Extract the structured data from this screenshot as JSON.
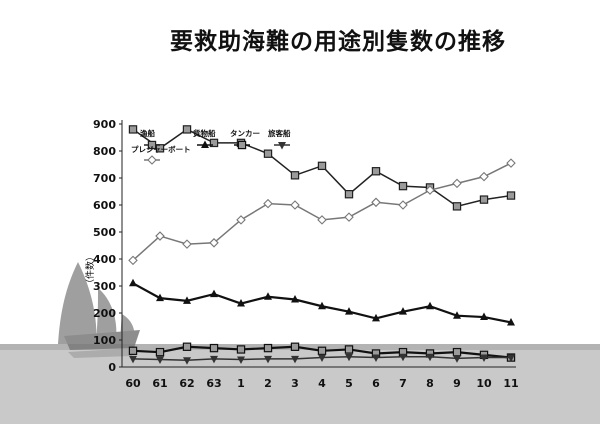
{
  "page": {
    "title": "要救助海難の用途別隻数の推移"
  },
  "chart_data": {
    "type": "line",
    "ylabel": "（件数）",
    "ylim": [
      0,
      900
    ],
    "yticks": [
      0,
      100,
      200,
      300,
      400,
      500,
      600,
      700,
      800,
      900
    ],
    "categories": [
      "60",
      "61",
      "62",
      "63",
      "1",
      "2",
      "3",
      "4",
      "5",
      "6",
      "7",
      "8",
      "9",
      "10",
      "11"
    ],
    "legend_placement": "top-left inside plot",
    "series": [
      {
        "name": "漁船",
        "marker": "square",
        "color": "#222222",
        "values": [
          880,
          810,
          880,
          830,
          830,
          790,
          710,
          745,
          640,
          725,
          670,
          665,
          595,
          620,
          635
        ]
      },
      {
        "name": "プレジャーボート",
        "marker": "diamond",
        "color": "#777777",
        "values": [
          395,
          485,
          455,
          460,
          545,
          605,
          600,
          545,
          555,
          610,
          600,
          655,
          680,
          705,
          755
        ]
      },
      {
        "name": "貨物船",
        "marker": "triangle-up",
        "color": "#111111",
        "values": [
          310,
          255,
          245,
          270,
          235,
          260,
          250,
          225,
          205,
          180,
          205,
          225,
          190,
          185,
          165
        ]
      },
      {
        "name": "タンカー",
        "marker": "square",
        "color": "#111111",
        "values": [
          60,
          55,
          75,
          70,
          65,
          70,
          75,
          60,
          65,
          50,
          55,
          50,
          55,
          45,
          35
        ]
      },
      {
        "name": "旅客船",
        "marker": "triangle-down",
        "color": "#333333",
        "values": [
          30,
          28,
          25,
          30,
          28,
          30,
          30,
          35,
          38,
          35,
          38,
          38,
          32,
          35,
          35
        ]
      }
    ]
  }
}
